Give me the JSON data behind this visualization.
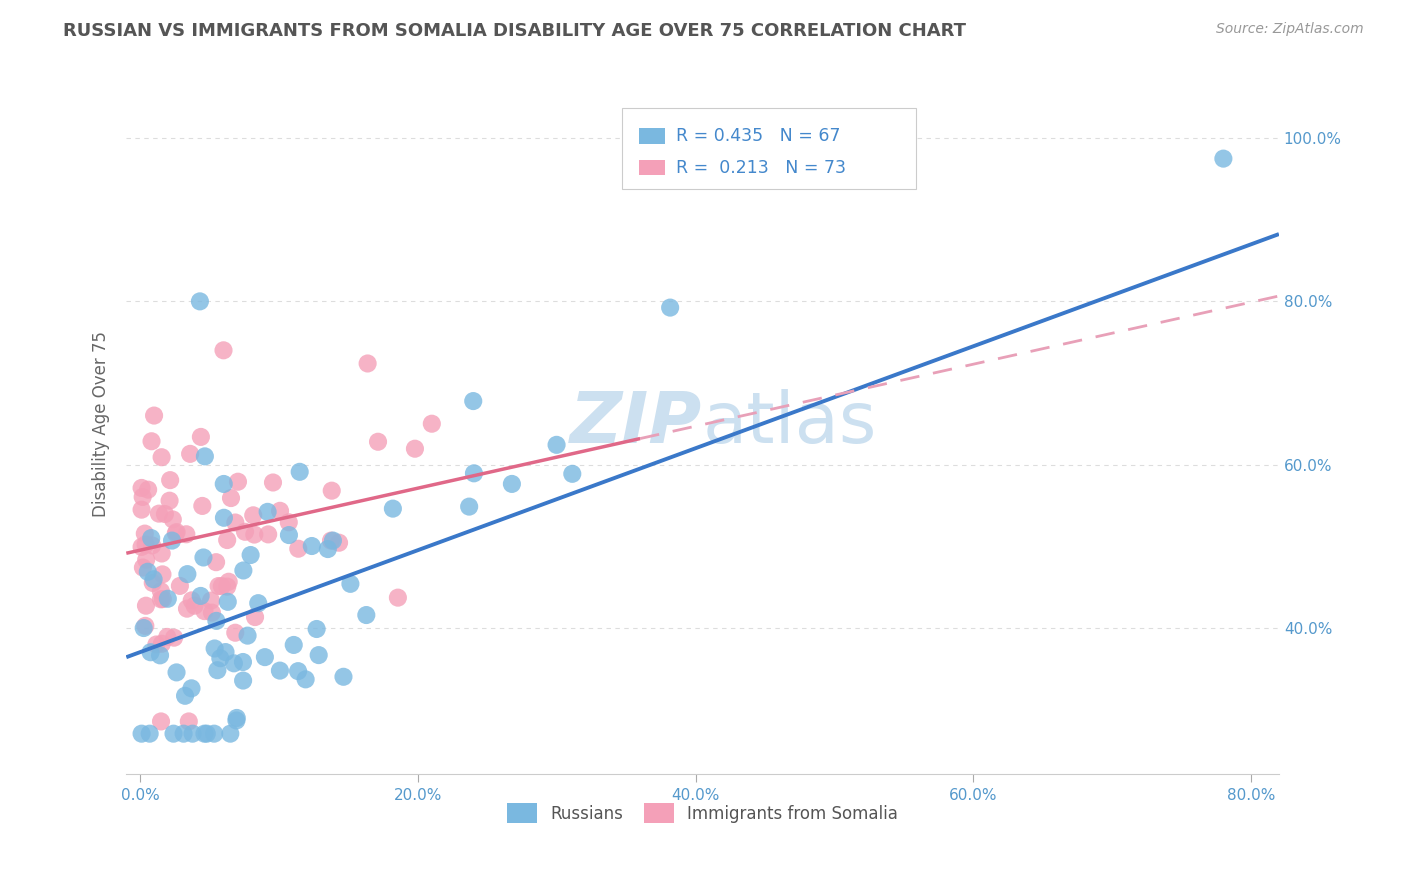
{
  "title": "RUSSIAN VS IMMIGRANTS FROM SOMALIA DISABILITY AGE OVER 75 CORRELATION CHART",
  "source": "Source: ZipAtlas.com",
  "ylabel": "Disability Age Over 75",
  "blue_color": "#7ab8e0",
  "pink_color": "#f4a0b8",
  "blue_line_color": "#3a78c9",
  "pink_line_color": "#e06888",
  "pink_line_dashed_color": "#e8a0b8",
  "axis_label_color": "#5599cc",
  "legend_R_color": "#4488cc",
  "watermark_color": "#cce0f0",
  "grid_color": "#dddddd",
  "title_color": "#555555",
  "source_color": "#999999",
  "ylabel_color": "#666666",
  "russian_R": 0.435,
  "russian_N": 67,
  "somalia_R": 0.213,
  "somalia_N": 73,
  "xlim": [
    -0.01,
    0.82
  ],
  "ylim": [
    0.22,
    1.08
  ],
  "xticks": [
    0.0,
    0.2,
    0.4,
    0.6,
    0.8
  ],
  "yticks": [
    0.4,
    0.6,
    0.8,
    1.0
  ],
  "xtick_labels": [
    "0.0%",
    "20.0%",
    "40.0%",
    "60.0%",
    "80.0%"
  ],
  "ytick_labels": [
    "40.0%",
    "60.0%",
    "80.0%",
    "100.0%"
  ],
  "blue_intercept": 0.37,
  "blue_slope": 0.625,
  "pink_intercept": 0.495,
  "pink_slope": 0.38,
  "legend1_label": "Russians",
  "legend2_label": "Immigrants from Somalia"
}
